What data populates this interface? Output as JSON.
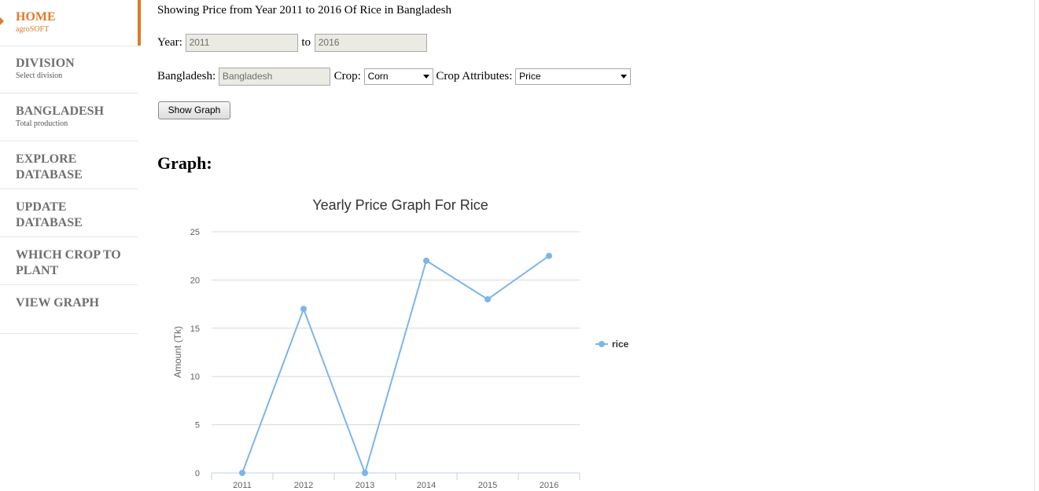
{
  "sidebar": {
    "items": [
      {
        "title": "HOME",
        "subtitle": "agroSOFT",
        "active": true
      },
      {
        "title": "DIVISION",
        "subtitle": "Select division"
      },
      {
        "title": "BANGLADESH",
        "subtitle": "Total production"
      },
      {
        "title": "EXPLORE",
        "title2": "DATABASE"
      },
      {
        "title": "UPDATE",
        "title2": "DATABASE"
      },
      {
        "title": "WHICH CROP TO",
        "title2": "PLANT"
      },
      {
        "title": "VIEW GRAPH"
      }
    ],
    "accent_color": "#e07a26"
  },
  "main": {
    "heading": "Showing Price from Year 2011 to 2016 Of Rice in Bangladesh",
    "year_label": "Year:",
    "year_from": "2011",
    "to_label": "to",
    "year_to": "2016",
    "country_label": "Bangladesh:",
    "country_value": "Bangladesh",
    "crop_label": "Crop:",
    "crop_value": "Corn",
    "attr_label": "Crop Attributes:",
    "attr_value": "Price",
    "show_button": "Show Graph",
    "graph_heading": "Graph:"
  },
  "chart_data": {
    "type": "line",
    "title": "Yearly Price Graph For Rice",
    "xlabel": "",
    "ylabel": "Amount (Tk)",
    "categories": [
      "2011",
      "2012",
      "2013",
      "2014",
      "2015",
      "2016"
    ],
    "series": [
      {
        "name": "rice",
        "values": [
          0,
          17,
          0,
          22,
          18,
          22.5
        ],
        "color": "#7cb5ec"
      }
    ],
    "ylim": [
      0,
      25
    ],
    "yticks": [
      "0",
      "5",
      "10",
      "15",
      "20",
      "25"
    ],
    "grid": true,
    "legend": "right"
  }
}
